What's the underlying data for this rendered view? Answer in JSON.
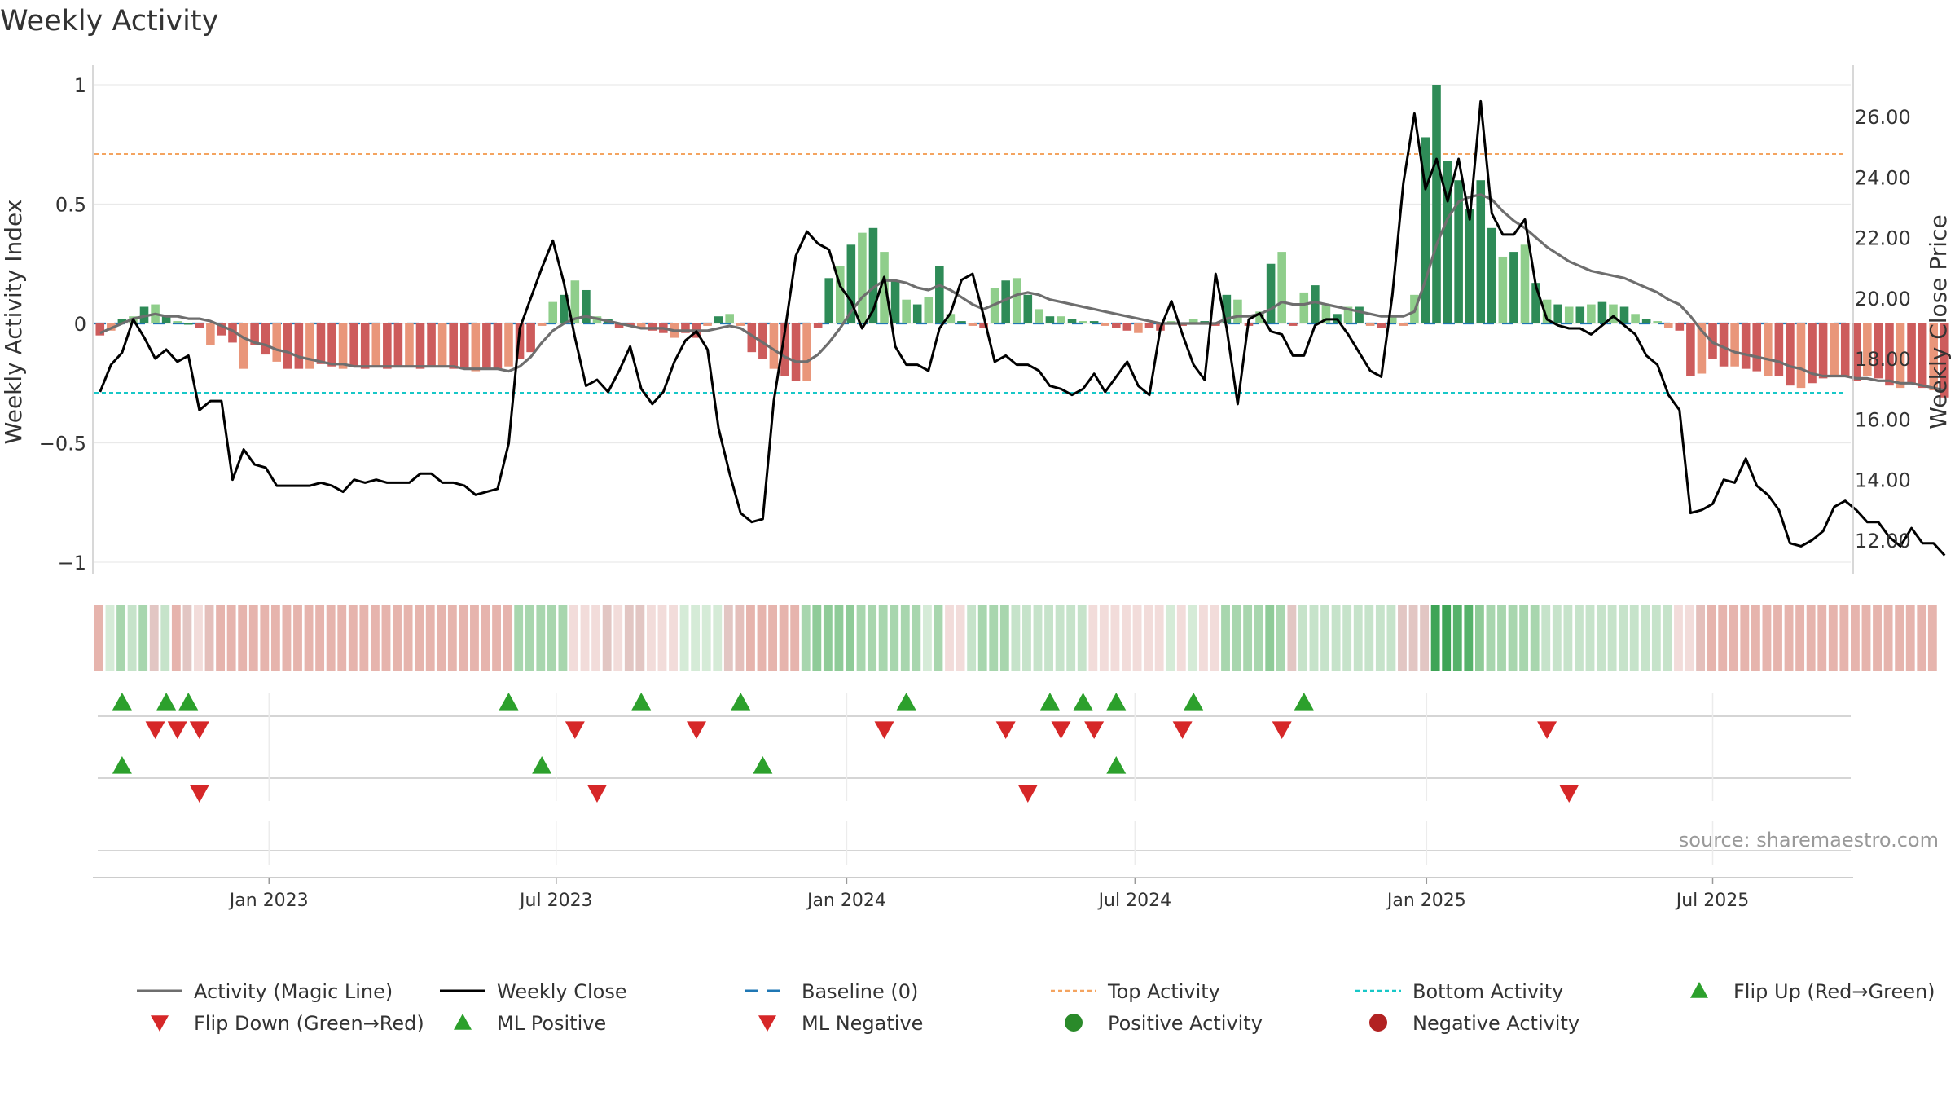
{
  "chart_data": {
    "type": "bar",
    "title": "Weekly Activity",
    "ylabel_left": "Weekly Activity Index",
    "ylabel_right": "Weekly Close Price",
    "ylim_left": [
      -1.1,
      1.08
    ],
    "ylim_right": [
      11.2,
      27.8
    ],
    "yticks_left": [
      {
        "v": 1,
        "label": "1"
      },
      {
        "v": 0.5,
        "label": "0.5"
      },
      {
        "v": 0,
        "label": "0"
      },
      {
        "v": -0.5,
        "label": "−0.5"
      },
      {
        "v": -1,
        "label": "−1"
      }
    ],
    "yticks_right": [
      {
        "v": 26,
        "label": "26.00"
      },
      {
        "v": 24,
        "label": "24.00"
      },
      {
        "v": 22,
        "label": "22.00"
      },
      {
        "v": 20,
        "label": "20.00"
      },
      {
        "v": 18,
        "label": "18.00"
      },
      {
        "v": 16,
        "label": "16.00"
      },
      {
        "v": 14,
        "label": "14.00"
      },
      {
        "v": 12,
        "label": "12.00"
      }
    ],
    "x_range_weeks": [
      0,
      158
    ],
    "xticks": [
      {
        "week": 15.3,
        "label": "Jan 2023"
      },
      {
        "week": 41.3,
        "label": "Jul 2023"
      },
      {
        "week": 67.6,
        "label": "Jan 2024"
      },
      {
        "week": 93.7,
        "label": "Jul 2024"
      },
      {
        "week": 120.1,
        "label": "Jan 2025"
      },
      {
        "week": 146.0,
        "label": "Jul 2025"
      }
    ],
    "top_activity": 0.71,
    "bottom_activity": -0.29,
    "baseline": 0,
    "activity": [
      -0.05,
      -0.03,
      0.02,
      0.03,
      0.07,
      0.08,
      0.03,
      0.01,
      0.0,
      -0.02,
      -0.09,
      -0.05,
      -0.08,
      -0.19,
      -0.09,
      -0.13,
      -0.16,
      -0.19,
      -0.19,
      -0.19,
      -0.17,
      -0.18,
      -0.19,
      -0.18,
      -0.19,
      -0.18,
      -0.19,
      -0.18,
      -0.18,
      -0.19,
      -0.18,
      -0.18,
      -0.19,
      -0.19,
      -0.2,
      -0.19,
      -0.19,
      -0.18,
      -0.15,
      -0.12,
      -0.01,
      0.09,
      0.12,
      0.18,
      0.14,
      0.03,
      0.02,
      -0.02,
      -0.01,
      -0.02,
      -0.03,
      -0.04,
      -0.06,
      -0.04,
      -0.06,
      -0.01,
      0.03,
      0.04,
      -0.01,
      -0.12,
      -0.15,
      -0.19,
      -0.22,
      -0.24,
      -0.24,
      -0.02,
      0.19,
      0.24,
      0.33,
      0.38,
      0.4,
      0.3,
      0.18,
      0.1,
      0.08,
      0.11,
      0.24,
      0.04,
      0.01,
      -0.01,
      -0.02,
      0.15,
      0.18,
      0.19,
      0.12,
      0.06,
      0.03,
      0.03,
      0.02,
      0.01,
      0.01,
      -0.01,
      -0.02,
      -0.03,
      -0.04,
      -0.02,
      -0.03,
      0.01,
      -0.01,
      0.02,
      0.01,
      -0.01,
      0.12,
      0.1,
      -0.01,
      0.05,
      0.25,
      0.3,
      -0.01,
      0.13,
      0.16,
      0.08,
      0.04,
      0.07,
      0.07,
      -0.01,
      -0.02,
      0.03,
      -0.01,
      0.12,
      0.78,
      1.0,
      0.68,
      0.6,
      0.48,
      0.6,
      0.4,
      0.28,
      0.3,
      0.33,
      0.17,
      0.1,
      0.08,
      0.07,
      0.07,
      0.08,
      0.09,
      0.08,
      0.07,
      0.04,
      0.02,
      0.01,
      -0.02,
      -0.03,
      -0.22,
      -0.21,
      -0.15,
      -0.18,
      -0.18,
      -0.19,
      -0.2,
      -0.22,
      -0.22,
      -0.26,
      -0.27,
      -0.25,
      -0.23,
      -0.22,
      -0.22,
      -0.24,
      -0.22,
      -0.23,
      -0.26,
      -0.27,
      -0.25,
      -0.27,
      -0.28,
      -0.31
    ],
    "activity_magic_line": [
      -0.04,
      -0.02,
      0.0,
      0.02,
      0.03,
      0.04,
      0.03,
      0.03,
      0.02,
      0.02,
      0.01,
      -0.01,
      -0.03,
      -0.06,
      -0.08,
      -0.09,
      -0.11,
      -0.12,
      -0.14,
      -0.15,
      -0.16,
      -0.17,
      -0.17,
      -0.18,
      -0.18,
      -0.18,
      -0.18,
      -0.18,
      -0.18,
      -0.18,
      -0.18,
      -0.18,
      -0.18,
      -0.19,
      -0.19,
      -0.19,
      -0.19,
      -0.2,
      -0.18,
      -0.14,
      -0.08,
      -0.03,
      0.0,
      0.02,
      0.03,
      0.02,
      0.01,
      0.0,
      -0.01,
      -0.02,
      -0.02,
      -0.02,
      -0.03,
      -0.03,
      -0.03,
      -0.03,
      -0.02,
      -0.01,
      -0.02,
      -0.05,
      -0.08,
      -0.11,
      -0.14,
      -0.16,
      -0.16,
      -0.13,
      -0.08,
      -0.02,
      0.05,
      0.11,
      0.15,
      0.18,
      0.18,
      0.17,
      0.15,
      0.14,
      0.16,
      0.14,
      0.11,
      0.08,
      0.06,
      0.08,
      0.1,
      0.12,
      0.13,
      0.12,
      0.1,
      0.09,
      0.08,
      0.07,
      0.06,
      0.05,
      0.04,
      0.03,
      0.02,
      0.01,
      0.0,
      0.0,
      0.0,
      0.0,
      0.0,
      0.0,
      0.02,
      0.03,
      0.03,
      0.04,
      0.06,
      0.09,
      0.08,
      0.08,
      0.09,
      0.08,
      0.07,
      0.06,
      0.05,
      0.04,
      0.03,
      0.03,
      0.03,
      0.05,
      0.18,
      0.33,
      0.44,
      0.51,
      0.53,
      0.54,
      0.52,
      0.47,
      0.43,
      0.4,
      0.36,
      0.32,
      0.29,
      0.26,
      0.24,
      0.22,
      0.21,
      0.2,
      0.19,
      0.17,
      0.15,
      0.13,
      0.1,
      0.08,
      0.03,
      -0.03,
      -0.08,
      -0.1,
      -0.12,
      -0.13,
      -0.14,
      -0.15,
      -0.16,
      -0.18,
      -0.19,
      -0.21,
      -0.22,
      -0.22,
      -0.22,
      -0.23,
      -0.23,
      -0.24,
      -0.24,
      -0.25,
      -0.25,
      -0.26,
      -0.27,
      -0.28
    ],
    "weekly_close": [
      16.9,
      17.8,
      18.2,
      19.3,
      18.7,
      18.0,
      18.3,
      17.9,
      18.1,
      16.3,
      16.6,
      16.6,
      14.0,
      15.0,
      14.5,
      14.4,
      13.8,
      13.8,
      13.8,
      13.8,
      13.9,
      13.8,
      13.6,
      14.0,
      13.9,
      14.0,
      13.9,
      13.9,
      13.9,
      14.2,
      14.2,
      13.9,
      13.9,
      13.8,
      13.5,
      13.6,
      13.7,
      15.2,
      19.0,
      20.0,
      21.0,
      21.9,
      20.5,
      18.7,
      17.1,
      17.3,
      16.9,
      17.6,
      18.4,
      17.0,
      16.5,
      16.9,
      17.9,
      18.6,
      18.9,
      18.3,
      15.7,
      14.2,
      12.9,
      12.6,
      12.7,
      16.6,
      18.9,
      21.4,
      22.2,
      21.8,
      21.6,
      20.4,
      19.9,
      19.0,
      19.6,
      20.7,
      18.4,
      17.8,
      17.8,
      17.6,
      19.0,
      19.5,
      20.6,
      20.8,
      19.4,
      17.9,
      18.1,
      17.8,
      17.8,
      17.6,
      17.1,
      17.0,
      16.8,
      17.0,
      17.5,
      16.9,
      17.4,
      17.9,
      17.1,
      16.8,
      19.0,
      19.9,
      18.8,
      17.8,
      17.3,
      20.8,
      19.0,
      16.5,
      19.3,
      19.5,
      18.9,
      18.8,
      18.1,
      18.1,
      19.1,
      19.3,
      19.3,
      18.8,
      18.2,
      17.6,
      17.4,
      20.1,
      23.8,
      26.1,
      23.6,
      24.6,
      23.2,
      24.6,
      22.6,
      26.5,
      22.8,
      22.1,
      22.1,
      22.6,
      20.4,
      19.3,
      19.1,
      19.0,
      19.0,
      18.8,
      19.1,
      19.4,
      19.1,
      18.8,
      18.1,
      17.8,
      16.8,
      16.3,
      12.9,
      13.0,
      13.2,
      14.0,
      13.9,
      14.7,
      13.8,
      13.5,
      13.0,
      11.9,
      11.8,
      12.0,
      12.3,
      13.1,
      13.3,
      13.0,
      12.6,
      12.6,
      12.1,
      11.8,
      12.4,
      11.9,
      11.9,
      11.5
    ],
    "strip_colors": [
      "#e6b4ad",
      "#d5ebd7",
      "#a8d6ae",
      "#c6e3ca",
      "#a8d6ae",
      "#e2c6c3",
      "#c6e3ca",
      "#e6b4ad",
      "#e2c6c3",
      "#f2dcda",
      "#e4bfbb",
      "#e6b4ad",
      "#e6b4ad",
      "#e6b4ad",
      "#e6b4ad",
      "#e6b4ad",
      "#e6b4ad",
      "#e6b4ad",
      "#e6b4ad",
      "#e6b4ad",
      "#e6b4ad",
      "#e6b4ad",
      "#e6b4ad",
      "#e6b4ad",
      "#e6b4ad",
      "#e6b4ad",
      "#e6b4ad",
      "#e6b4ad",
      "#e6b4ad",
      "#e6b4ad",
      "#e6b4ad",
      "#e6b4ad",
      "#e6b4ad",
      "#e6b4ad",
      "#e6b4ad",
      "#e6b4ad",
      "#e6b4ad",
      "#e6b4ad",
      "#a8d6ae",
      "#a8d6ae",
      "#a8d6ae",
      "#a8d6ae",
      "#a8d6ae",
      "#f2dcda",
      "#f2dcda",
      "#f2dcda",
      "#e2c6c3",
      "#f2dcda",
      "#e2c6c3",
      "#e2c6c3",
      "#f2dcda",
      "#f2dcda",
      "#f2dcda",
      "#d5ebd7",
      "#d5ebd7",
      "#d5ebd7",
      "#d5ebd7",
      "#e2c6c3",
      "#e4bfbb",
      "#e6b4ad",
      "#e6b4ad",
      "#e6b4ad",
      "#e6b4ad",
      "#e6b4ad",
      "#a8d6ae",
      "#8fcb98",
      "#8fcb98",
      "#8fcb98",
      "#8fcb98",
      "#a8d6ae",
      "#a8d6ae",
      "#a8d6ae",
      "#a8d6ae",
      "#a8d6ae",
      "#a8d6ae",
      "#d5ebd7",
      "#a8d6ae",
      "#f2dcda",
      "#f2dcda",
      "#c6e3ca",
      "#a8d6ae",
      "#a8d6ae",
      "#a8d6ae",
      "#c6e3ca",
      "#c6e3ca",
      "#c6e3ca",
      "#c6e3ca",
      "#c6e3ca",
      "#c6e3ca",
      "#c6e3ca",
      "#f2dcda",
      "#f2dcda",
      "#f2dcda",
      "#f2dcda",
      "#f2dcda",
      "#f2dcda",
      "#f2dcda",
      "#d5ebd7",
      "#f2dcda",
      "#d5ebd7",
      "#f2dcda",
      "#f2dcda",
      "#a8d6ae",
      "#a8d6ae",
      "#a8d6ae",
      "#a8d6ae",
      "#8fcb98",
      "#a8d6ae",
      "#e2c6c3",
      "#c6e3ca",
      "#c6e3ca",
      "#c6e3ca",
      "#c6e3ca",
      "#c6e3ca",
      "#c6e3ca",
      "#c6e3ca",
      "#c6e3ca",
      "#c6e3ca",
      "#e2c6c3",
      "#e2c6c3",
      "#e2c6c3",
      "#3ea456",
      "#3ea456",
      "#56b26a",
      "#56b26a",
      "#8fcb98",
      "#a8d6ae",
      "#a8d6ae",
      "#a8d6ae",
      "#a8d6ae",
      "#a8d6ae",
      "#c6e3ca",
      "#c6e3ca",
      "#c6e3ca",
      "#c6e3ca",
      "#c6e3ca",
      "#c6e3ca",
      "#c6e3ca",
      "#c6e3ca",
      "#c6e3ca",
      "#c6e3ca",
      "#c6e3ca",
      "#c6e3ca",
      "#f2dcda",
      "#f2dcda",
      "#e4bfbb",
      "#e6b4ad",
      "#e6b4ad",
      "#e6b4ad",
      "#e6b4ad",
      "#e6b4ad",
      "#e6b4ad",
      "#e6b4ad",
      "#e6b4ad",
      "#e6b4ad",
      "#e6b4ad",
      "#e6b4ad",
      "#e6b4ad",
      "#e6b4ad",
      "#e6b4ad",
      "#e6b4ad",
      "#e6b4ad",
      "#e6b4ad",
      "#e6b4ad",
      "#e6b4ad",
      "#e6b4ad",
      "#e6b4ad"
    ],
    "flip_up_weeks": [
      2,
      6,
      8,
      37,
      49,
      58,
      73,
      86,
      89,
      92,
      99,
      109
    ],
    "flip_down_weeks": [
      5,
      7,
      9,
      43,
      54,
      71,
      82,
      87,
      90,
      98,
      107,
      131
    ],
    "ml_positive_weeks": [
      2,
      40,
      60,
      92
    ],
    "ml_negative_weeks": [
      9,
      45,
      84,
      133
    ],
    "colors": {
      "green_dark": "#2e8b57",
      "green_light": "#8fce8b",
      "red_dark": "#cd5c5c",
      "red_light": "#e9967a",
      "magic_line": "#6e6e6e",
      "close_line": "#000000",
      "baseline": "#1f77b4",
      "top_line": "#f4a460",
      "bottom_line": "#17c7c7",
      "flip_up": "#2ca02c",
      "flip_down": "#d62728",
      "positive_dot": "#2a8a2a",
      "negative_dot": "#b22222",
      "grid": "#e9e9e9",
      "axis": "#cccccc"
    },
    "legend": [
      {
        "label": "Activity (Magic Line)",
        "symbol": "line-gray"
      },
      {
        "label": "Weekly Close",
        "symbol": "line-black"
      },
      {
        "label": "Baseline (0)",
        "symbol": "dash-blue"
      },
      {
        "label": "Top Activity",
        "symbol": "dot-orange"
      },
      {
        "label": "Bottom Activity",
        "symbol": "dot-cyan"
      },
      {
        "label": "Flip Up (Red→Green)",
        "symbol": "tri-up"
      },
      {
        "label": "Flip Down (Green→Red)",
        "symbol": "tri-down"
      },
      {
        "label": "ML Positive",
        "symbol": "tri-up"
      },
      {
        "label": "ML Negative",
        "symbol": "tri-down"
      },
      {
        "label": "Positive Activity",
        "symbol": "circle-green"
      },
      {
        "label": "Negative Activity",
        "symbol": "circle-red"
      }
    ],
    "source": "source: sharemaestro.com"
  }
}
